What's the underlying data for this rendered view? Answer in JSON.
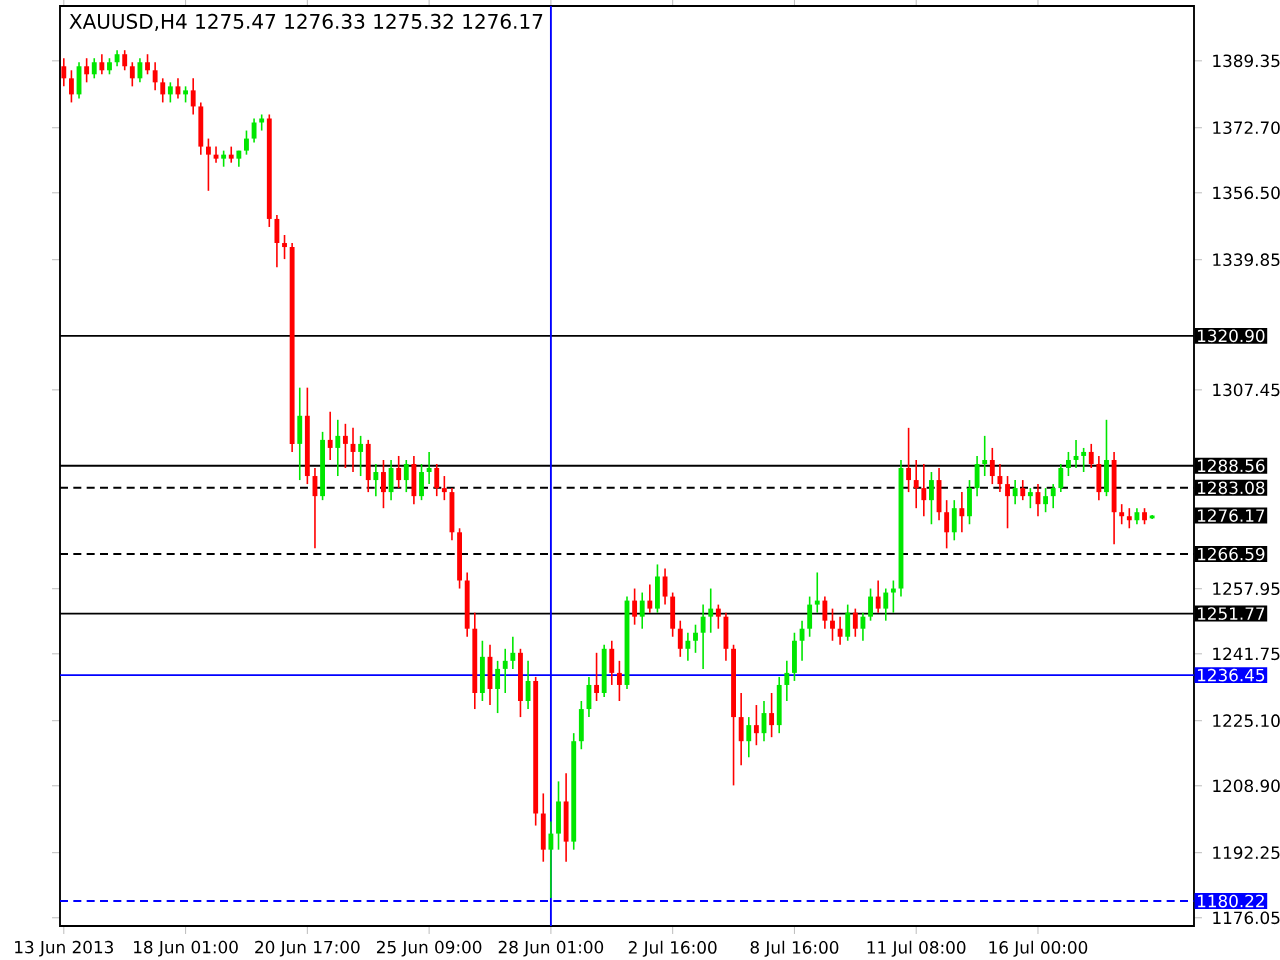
{
  "chart_data": {
    "type": "candlestick",
    "title": "XAUUSD,H4 1275.47 1276.33 1275.32 1276.17",
    "categories": [
      "13 Jun 2013",
      null,
      null,
      null,
      null,
      null,
      null,
      null,
      null,
      null,
      null,
      null,
      null,
      null,
      null,
      null,
      "18 Jun 01:00",
      null,
      null,
      null,
      null,
      null,
      null,
      null,
      null,
      null,
      null,
      null,
      null,
      null,
      null,
      null,
      "20 Jun 17:00",
      null,
      null,
      null,
      null,
      null,
      null,
      null,
      null,
      null,
      null,
      null,
      null,
      null,
      null,
      null,
      "25 Jun 09:00",
      null,
      null,
      null,
      null,
      null,
      null,
      null,
      null,
      null,
      null,
      null,
      null,
      null,
      null,
      null,
      "28 Jun 01:00",
      null,
      null,
      null,
      null,
      null,
      null,
      null,
      null,
      null,
      null,
      null,
      null,
      null,
      null,
      null,
      "2 Jul 16:00",
      null,
      null,
      null,
      null,
      null,
      null,
      null,
      null,
      null,
      null,
      null,
      null,
      null,
      null,
      null,
      "8 Jul 16:00",
      null,
      null,
      null,
      null,
      null,
      null,
      null,
      null,
      null,
      null,
      null,
      null,
      null,
      null,
      null,
      "11 Jul 08:00",
      null,
      null,
      null,
      null,
      null,
      null,
      null,
      null,
      null,
      null,
      null,
      null,
      null,
      null,
      null,
      "16 Jul 00:00",
      null,
      null,
      null,
      null,
      null,
      null,
      null,
      null,
      null,
      null,
      null,
      null,
      null,
      null,
      null
    ],
    "ohlc": [
      [
        1388,
        1390,
        1383,
        1385
      ],
      [
        1385,
        1387,
        1379,
        1381
      ],
      [
        1381,
        1389,
        1380,
        1388
      ],
      [
        1388,
        1390,
        1384,
        1386
      ],
      [
        1386,
        1390,
        1385,
        1389
      ],
      [
        1389,
        1391,
        1386,
        1387
      ],
      [
        1387,
        1390,
        1386,
        1389
      ],
      [
        1389,
        1392,
        1388,
        1391
      ],
      [
        1391,
        1392,
        1387,
        1388
      ],
      [
        1388,
        1389,
        1383,
        1385
      ],
      [
        1385,
        1390,
        1384,
        1389
      ],
      [
        1389,
        1391,
        1386,
        1387
      ],
      [
        1387,
        1389,
        1382,
        1384
      ],
      [
        1384,
        1385,
        1379,
        1381
      ],
      [
        1381,
        1384,
        1379,
        1383
      ],
      [
        1383,
        1385,
        1380,
        1381
      ],
      [
        1381,
        1383,
        1379,
        1382
      ],
      [
        1382,
        1385,
        1376,
        1378
      ],
      [
        1378,
        1379,
        1366,
        1368
      ],
      [
        1368,
        1370,
        1357,
        1366
      ],
      [
        1366,
        1368,
        1364,
        1365
      ],
      [
        1365,
        1367,
        1363,
        1366
      ],
      [
        1366,
        1368,
        1364,
        1365
      ],
      [
        1365,
        1367,
        1363,
        1367
      ],
      [
        1367,
        1372,
        1366,
        1370
      ],
      [
        1370,
        1375,
        1369,
        1374
      ],
      [
        1374,
        1376,
        1372,
        1375
      ],
      [
        1375,
        1376,
        1348,
        1350
      ],
      [
        1350,
        1351,
        1338,
        1344
      ],
      [
        1344,
        1346,
        1340,
        1343
      ],
      [
        1343,
        1344,
        1292,
        1294
      ],
      [
        1294,
        1308,
        1285,
        1301
      ],
      [
        1301,
        1308,
        1284,
        1286
      ],
      [
        1286,
        1288,
        1268,
        1281
      ],
      [
        1281,
        1297,
        1280,
        1295
      ],
      [
        1295,
        1302,
        1290,
        1293
      ],
      [
        1293,
        1300,
        1286,
        1296
      ],
      [
        1296,
        1299,
        1288,
        1294
      ],
      [
        1294,
        1298,
        1287,
        1292
      ],
      [
        1292,
        1296,
        1286,
        1294
      ],
      [
        1294,
        1295,
        1282,
        1285
      ],
      [
        1285,
        1289,
        1281,
        1287
      ],
      [
        1287,
        1290,
        1278,
        1282
      ],
      [
        1282,
        1290,
        1280,
        1288
      ],
      [
        1288,
        1291,
        1283,
        1285
      ],
      [
        1285,
        1290,
        1282,
        1289
      ],
      [
        1289,
        1291,
        1279,
        1281
      ],
      [
        1281,
        1289,
        1280,
        1287
      ],
      [
        1287,
        1292,
        1284,
        1288
      ],
      [
        1288,
        1289,
        1281,
        1283
      ],
      [
        1283,
        1286,
        1280,
        1282
      ],
      [
        1282,
        1283,
        1270,
        1272
      ],
      [
        1272,
        1273,
        1258,
        1260
      ],
      [
        1260,
        1262,
        1246,
        1248
      ],
      [
        1248,
        1252,
        1228,
        1232
      ],
      [
        1232,
        1245,
        1230,
        1241
      ],
      [
        1241,
        1244,
        1229,
        1233
      ],
      [
        1233,
        1240,
        1227,
        1238
      ],
      [
        1238,
        1243,
        1232,
        1240
      ],
      [
        1240,
        1246,
        1238,
        1242
      ],
      [
        1242,
        1243,
        1226,
        1230
      ],
      [
        1230,
        1240,
        1228,
        1235
      ],
      [
        1235,
        1236,
        1199,
        1202
      ],
      [
        1202,
        1207,
        1190,
        1193
      ],
      [
        1193,
        1200,
        1181,
        1197
      ],
      [
        1197,
        1210,
        1193,
        1205
      ],
      [
        1205,
        1212,
        1190,
        1195
      ],
      [
        1195,
        1222,
        1193,
        1220
      ],
      [
        1220,
        1230,
        1218,
        1228
      ],
      [
        1228,
        1236,
        1226,
        1234
      ],
      [
        1234,
        1242,
        1230,
        1232
      ],
      [
        1232,
        1244,
        1231,
        1243
      ],
      [
        1243,
        1245,
        1234,
        1237
      ],
      [
        1237,
        1240,
        1230,
        1234
      ],
      [
        1234,
        1256,
        1233,
        1255
      ],
      [
        1255,
        1258,
        1249,
        1251
      ],
      [
        1251,
        1257,
        1248,
        1255
      ],
      [
        1255,
        1259,
        1252,
        1253
      ],
      [
        1253,
        1264,
        1252,
        1261
      ],
      [
        1261,
        1263,
        1254,
        1256
      ],
      [
        1256,
        1257,
        1246,
        1248
      ],
      [
        1248,
        1250,
        1241,
        1243
      ],
      [
        1243,
        1247,
        1240,
        1245
      ],
      [
        1245,
        1249,
        1242,
        1247
      ],
      [
        1247,
        1254,
        1238,
        1251
      ],
      [
        1251,
        1258,
        1247,
        1253
      ],
      [
        1253,
        1254,
        1248,
        1251
      ],
      [
        1251,
        1252,
        1240,
        1243
      ],
      [
        1243,
        1244,
        1209,
        1226
      ],
      [
        1226,
        1232,
        1214,
        1220
      ],
      [
        1220,
        1226,
        1216,
        1224
      ],
      [
        1224,
        1229,
        1219,
        1222
      ],
      [
        1222,
        1230,
        1220,
        1227
      ],
      [
        1227,
        1232,
        1221,
        1224
      ],
      [
        1224,
        1236,
        1222,
        1234
      ],
      [
        1234,
        1240,
        1230,
        1237
      ],
      [
        1237,
        1247,
        1235,
        1245
      ],
      [
        1245,
        1250,
        1240,
        1248
      ],
      [
        1248,
        1256,
        1246,
        1254
      ],
      [
        1254,
        1262,
        1252,
        1255
      ],
      [
        1255,
        1256,
        1248,
        1250
      ],
      [
        1250,
        1253,
        1245,
        1248
      ],
      [
        1248,
        1251,
        1244,
        1246
      ],
      [
        1246,
        1254,
        1245,
        1252
      ],
      [
        1252,
        1253,
        1246,
        1248
      ],
      [
        1248,
        1252,
        1245,
        1251
      ],
      [
        1251,
        1258,
        1250,
        1256
      ],
      [
        1256,
        1260,
        1252,
        1253
      ],
      [
        1253,
        1258,
        1250,
        1257
      ],
      [
        1257,
        1260,
        1252,
        1258
      ],
      [
        1258,
        1290,
        1256,
        1288
      ],
      [
        1288,
        1298,
        1282,
        1285
      ],
      [
        1285,
        1290,
        1278,
        1283
      ],
      [
        1283,
        1289,
        1276,
        1280
      ],
      [
        1280,
        1287,
        1274,
        1285
      ],
      [
        1285,
        1288,
        1275,
        1277
      ],
      [
        1277,
        1280,
        1268,
        1272
      ],
      [
        1272,
        1280,
        1270,
        1278
      ],
      [
        1278,
        1282,
        1272,
        1276
      ],
      [
        1276,
        1285,
        1274,
        1283
      ],
      [
        1283,
        1291,
        1281,
        1289
      ],
      [
        1289,
        1296,
        1286,
        1290
      ],
      [
        1290,
        1293,
        1284,
        1286
      ],
      [
        1286,
        1289,
        1282,
        1284
      ],
      [
        1284,
        1286,
        1273,
        1281
      ],
      [
        1281,
        1285,
        1279,
        1283
      ],
      [
        1283,
        1285,
        1280,
        1281
      ],
      [
        1281,
        1283,
        1278,
        1282
      ],
      [
        1282,
        1284,
        1276,
        1279
      ],
      [
        1279,
        1283,
        1277,
        1281
      ],
      [
        1281,
        1284,
        1278,
        1283
      ],
      [
        1283,
        1289,
        1282,
        1288
      ],
      [
        1288,
        1292,
        1286,
        1290
      ],
      [
        1290,
        1295,
        1288,
        1291
      ],
      [
        1291,
        1293,
        1287,
        1292
      ],
      [
        1292,
        1294,
        1288,
        1289
      ],
      [
        1289,
        1291,
        1280,
        1282
      ],
      [
        1282,
        1300,
        1281,
        1290
      ],
      [
        1290,
        1292,
        1269,
        1277
      ],
      [
        1277,
        1279,
        1274,
        1276
      ],
      [
        1276,
        1278,
        1273,
        1275
      ],
      [
        1275,
        1278,
        1274,
        1277
      ],
      [
        1277,
        1278,
        1274,
        1275
      ],
      [
        1275.47,
        1276.33,
        1275.32,
        1276.17
      ]
    ],
    "ylim": [
      1174,
      1403
    ],
    "yticks": [
      {
        "value": 1389.35,
        "label": "1389.35"
      },
      {
        "value": 1372.7,
        "label": "1372.70"
      },
      {
        "value": 1356.5,
        "label": "1356.50"
      },
      {
        "value": 1339.85,
        "label": "1339.85"
      },
      {
        "value": 1307.45,
        "label": "1307.45"
      },
      {
        "value": 1257.95,
        "label": "1257.95"
      },
      {
        "value": 1241.75,
        "label": "1241.75"
      },
      {
        "value": 1225.1,
        "label": "1225.10"
      },
      {
        "value": 1208.9,
        "label": "1208.90"
      },
      {
        "value": 1192.25,
        "label": "1192.25"
      },
      {
        "value": 1176.05,
        "label": "1176.05"
      }
    ],
    "ref_lines": [
      {
        "axis": "y",
        "value": 1320.9,
        "label": "1320.90",
        "color": "#000000",
        "line_style": "solid"
      },
      {
        "axis": "y",
        "value": 1288.56,
        "label": "1288.56",
        "color": "#000000",
        "line_style": "solid"
      },
      {
        "axis": "y",
        "value": 1283.08,
        "label": "1283.08",
        "color": "#000000",
        "line_style": "dashed"
      },
      {
        "axis": "y",
        "value": 1266.59,
        "label": "1266.59",
        "color": "#000000",
        "line_style": "dashed"
      },
      {
        "axis": "y",
        "value": 1251.77,
        "label": "1251.77",
        "color": "#000000",
        "line_style": "solid"
      },
      {
        "axis": "y",
        "value": 1236.45,
        "label": "1236.45",
        "color": "#0000ff",
        "line_style": "solid"
      },
      {
        "axis": "y",
        "value": 1180.22,
        "label": "1180.22",
        "color": "#0000ff",
        "line_style": "dashed"
      },
      {
        "axis": "x",
        "value": "28 Jun 01:00",
        "color": "#0000ff",
        "line_style": "solid"
      }
    ],
    "annotations": [
      "1276.17"
    ]
  }
}
